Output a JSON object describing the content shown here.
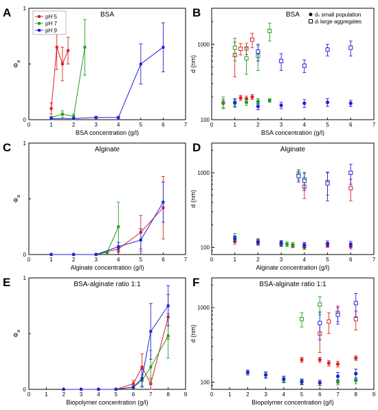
{
  "colors": {
    "pH 5": "#e02020",
    "pH 7": "#20a020",
    "pH 9": "#2020e0"
  },
  "chart_data": [
    {
      "id": "A",
      "type": "line",
      "title": "BSA",
      "xlabel": "BSA concentration (g/l)",
      "ylabel": "Φ",
      "xlim": [
        0,
        7
      ],
      "ylim": [
        0,
        1
      ],
      "xticks": [
        "0",
        "1",
        "2",
        "3",
        "4",
        "5",
        "6",
        "7"
      ],
      "yticks": [
        "0",
        "",
        "1"
      ],
      "legend": [
        "pH 5",
        "pH 7",
        "pH 9"
      ],
      "legend_position": "top-left",
      "series": [
        {
          "name": "pH 5",
          "x": [
            1,
            1.25,
            1.5,
            1.75
          ],
          "y": [
            0.1,
            0.65,
            0.5,
            0.62
          ],
          "err": [
            0.05,
            0.2,
            0.15,
            0.12
          ]
        },
        {
          "name": "pH 7",
          "x": [
            1,
            1.5,
            2,
            2.5
          ],
          "y": [
            0.02,
            0.05,
            0.03,
            0.65
          ],
          "err": [
            0.01,
            0.03,
            0.02,
            0.25
          ]
        },
        {
          "name": "pH 9",
          "x": [
            1,
            2,
            3,
            4,
            5,
            6
          ],
          "y": [
            0.01,
            0.01,
            0.02,
            0.02,
            0.5,
            0.65
          ],
          "err": [
            0.01,
            0.01,
            0.01,
            0.01,
            0.18,
            0.22
          ]
        }
      ]
    },
    {
      "id": "B",
      "type": "scatter",
      "title": "BSA",
      "xlabel": "BSA concentration (g/l)",
      "ylabel": "d (nm)",
      "xlim": [
        0,
        7
      ],
      "ylim": [
        100,
        3000
      ],
      "log_y": true,
      "xticks": [
        "0",
        "1",
        "2",
        "3",
        "4",
        "5",
        "6",
        "7"
      ],
      "yticks": [
        "100",
        "1000"
      ],
      "legend": [
        "dₛ small population",
        "dₗ large aggregates"
      ],
      "legend_position": "top-right",
      "series": [
        {
          "name": "pH 5 small",
          "x": [
            0.5,
            1.25,
            1.5,
            1.75
          ],
          "y": [
            165,
            195,
            190,
            200
          ],
          "err": [
            20,
            15,
            15,
            15
          ],
          "filled": true
        },
        {
          "name": "pH 5 large",
          "x": [
            1,
            1.25,
            1.5,
            1.75
          ],
          "y": [
            720,
            870,
            880,
            1150
          ],
          "err": [
            350,
            150,
            150,
            250
          ],
          "filled": false
        },
        {
          "name": "pH 7 small",
          "x": [
            0.5,
            1,
            1.5,
            2,
            2.5
          ],
          "y": [
            170,
            165,
            170,
            175,
            180
          ],
          "err": [
            30,
            20,
            15,
            15,
            10
          ],
          "filled": true
        },
        {
          "name": "pH 7 large",
          "x": [
            1,
            1.5,
            2,
            2.5
          ],
          "y": [
            900,
            650,
            700,
            1500
          ],
          "err": [
            300,
            250,
            250,
            400
          ],
          "filled": false
        },
        {
          "name": "pH 9 small",
          "x": [
            1,
            2,
            3,
            4,
            5,
            6
          ],
          "y": [
            170,
            150,
            155,
            165,
            170,
            165
          ],
          "err": [
            20,
            15,
            15,
            20,
            20,
            15
          ],
          "filled": true
        },
        {
          "name": "pH 9 large",
          "x": [
            2,
            3,
            4,
            5,
            6
          ],
          "y": [
            800,
            600,
            520,
            850,
            900
          ],
          "err": [
            200,
            150,
            100,
            150,
            200
          ],
          "filled": false
        }
      ]
    },
    {
      "id": "C",
      "type": "line",
      "title": "Alginate",
      "xlabel": "Alginate concentration (g/l)",
      "ylabel": "Φ",
      "xlim": [
        0,
        7
      ],
      "ylim": [
        0,
        1
      ],
      "xticks": [
        "0",
        "1",
        "2",
        "3",
        "4",
        "5",
        "6",
        "7"
      ],
      "yticks": [
        "0",
        "",
        "1"
      ],
      "series": [
        {
          "name": "pH 5",
          "x": [
            1,
            2,
            3,
            4,
            5,
            6
          ],
          "y": [
            0,
            0,
            0,
            0.05,
            0.2,
            0.42
          ],
          "err": [
            0,
            0,
            0,
            0.03,
            0.15,
            0.28
          ]
        },
        {
          "name": "pH 7",
          "x": [
            1,
            2,
            3,
            3.5,
            4
          ],
          "y": [
            0,
            0,
            0,
            0.02,
            0.25
          ],
          "err": [
            0,
            0,
            0,
            0.01,
            0.22
          ]
        },
        {
          "name": "pH 9",
          "x": [
            1,
            2,
            3,
            4,
            5,
            6
          ],
          "y": [
            0,
            0,
            0,
            0.07,
            0.13,
            0.47
          ],
          "err": [
            0,
            0,
            0,
            0.04,
            0.1,
            0.18
          ]
        }
      ]
    },
    {
      "id": "D",
      "type": "scatter",
      "title": "Alginate",
      "xlabel": "Alginate concentration (g/l)",
      "ylabel": "d (nm)",
      "xlim": [
        0,
        7
      ],
      "ylim": [
        80,
        2500
      ],
      "log_y": true,
      "xticks": [
        "0",
        "1",
        "2",
        "3",
        "4",
        "5",
        "6",
        "7"
      ],
      "yticks": [
        "100",
        "1000"
      ],
      "series": [
        {
          "name": "pH 5 small",
          "x": [
            1,
            2,
            3,
            3.5,
            4,
            5,
            6
          ],
          "y": [
            120,
            115,
            108,
            105,
            100,
            108,
            103
          ],
          "err": [
            10,
            8,
            6,
            6,
            6,
            8,
            8
          ],
          "filled": true
        },
        {
          "name": "pH 5 large",
          "x": [
            4,
            5,
            6
          ],
          "y": [
            650,
            750,
            620
          ],
          "err": [
            200,
            250,
            200
          ],
          "filled": false
        },
        {
          "name": "pH 7 small",
          "x": [
            1,
            2,
            3,
            3.25,
            3.5,
            4
          ],
          "y": [
            138,
            120,
            112,
            110,
            108,
            105
          ],
          "err": [
            15,
            10,
            10,
            8,
            8,
            6
          ],
          "filled": true
        },
        {
          "name": "pH 7 large",
          "x": [
            3.75,
            4
          ],
          "y": [
            950,
            820
          ],
          "err": [
            150,
            200
          ],
          "filled": false
        },
        {
          "name": "pH 9 small",
          "x": [
            1,
            2,
            3,
            4,
            5,
            6
          ],
          "y": [
            130,
            118,
            115,
            108,
            112,
            110
          ],
          "err": [
            12,
            10,
            8,
            8,
            10,
            10
          ],
          "filled": true
        },
        {
          "name": "pH 9 large",
          "x": [
            3.75,
            4,
            5,
            6
          ],
          "y": [
            900,
            780,
            720,
            1000
          ],
          "err": [
            150,
            200,
            300,
            300
          ],
          "filled": false
        }
      ]
    },
    {
      "id": "E",
      "type": "line",
      "title": "BSA-alginate ratio 1:1",
      "xlabel": "Biopolymer concentration (g/l)",
      "ylabel": "Φ",
      "xlim": [
        0,
        9
      ],
      "ylim": [
        0,
        1
      ],
      "xticks": [
        "0",
        "1",
        "2",
        "3",
        "4",
        "5",
        "6",
        "7",
        "8",
        "9"
      ],
      "yticks": [
        "0",
        "",
        "1"
      ],
      "series": [
        {
          "name": "pH 5",
          "x": [
            2,
            3,
            4,
            5,
            6,
            6.5,
            7,
            8
          ],
          "y": [
            0,
            0,
            0,
            0,
            0.05,
            0.2,
            0.05,
            0.65
          ],
          "err": [
            0,
            0,
            0,
            0,
            0.03,
            0.12,
            0.05,
            0.2
          ]
        },
        {
          "name": "pH 7",
          "x": [
            2,
            3,
            4,
            5,
            6,
            6.5,
            7,
            8
          ],
          "y": [
            0,
            0,
            0,
            0,
            0.02,
            0.08,
            0.2,
            0.48
          ],
          "err": [
            0,
            0,
            0,
            0,
            0.01,
            0.05,
            0.15,
            0.2
          ]
        },
        {
          "name": "pH 9",
          "x": [
            2,
            3,
            4,
            5,
            6,
            6.5,
            7,
            8
          ],
          "y": [
            0,
            0,
            0,
            0,
            0.02,
            0.1,
            0.52,
            0.75
          ],
          "err": [
            0,
            0,
            0,
            0,
            0.01,
            0.08,
            0.25,
            0.18
          ]
        }
      ]
    },
    {
      "id": "F",
      "type": "scatter",
      "title": "BSA-alginate ratio 1:1",
      "xlabel": "Biopolymer concentration (g/l)",
      "ylabel": "d (nm)",
      "xlim": [
        0,
        9
      ],
      "ylim": [
        80,
        2500
      ],
      "log_y": true,
      "xticks": [
        "0",
        "1",
        "2",
        "3",
        "4",
        "5",
        "6",
        "7",
        "8",
        "9"
      ],
      "yticks": [
        "100",
        "1000"
      ],
      "series": [
        {
          "name": "pH 5 small",
          "x": [
            5,
            6,
            6.5,
            7,
            8
          ],
          "y": [
            200,
            200,
            180,
            175,
            210
          ],
          "err": [
            15,
            15,
            15,
            15,
            15
          ],
          "filled": true
        },
        {
          "name": "pH 5 large",
          "x": [
            6,
            6.5,
            7,
            8
          ],
          "y": [
            450,
            650,
            850,
            700
          ],
          "err": [
            200,
            200,
            200,
            200
          ],
          "filled": false
        },
        {
          "name": "pH 7 small",
          "x": [
            2,
            3,
            4,
            5,
            6,
            7,
            8
          ],
          "y": [
            135,
            125,
            108,
            100,
            98,
            100,
            105
          ],
          "err": [
            10,
            10,
            10,
            8,
            8,
            8,
            10
          ],
          "filled": true
        },
        {
          "name": "pH 7 large",
          "x": [
            5,
            6
          ],
          "y": [
            700,
            1100
          ],
          "err": [
            150,
            300
          ],
          "filled": false
        },
        {
          "name": "pH 9 small",
          "x": [
            2,
            3,
            4,
            5,
            6,
            7,
            8
          ],
          "y": [
            135,
            125,
            110,
            102,
            98,
            120,
            130
          ],
          "err": [
            10,
            12,
            10,
            8,
            8,
            15,
            20
          ],
          "filled": true
        },
        {
          "name": "pH 9 large",
          "x": [
            6,
            7,
            8
          ],
          "y": [
            620,
            800,
            1150
          ],
          "err": [
            250,
            200,
            400
          ],
          "filled": false
        }
      ]
    }
  ]
}
